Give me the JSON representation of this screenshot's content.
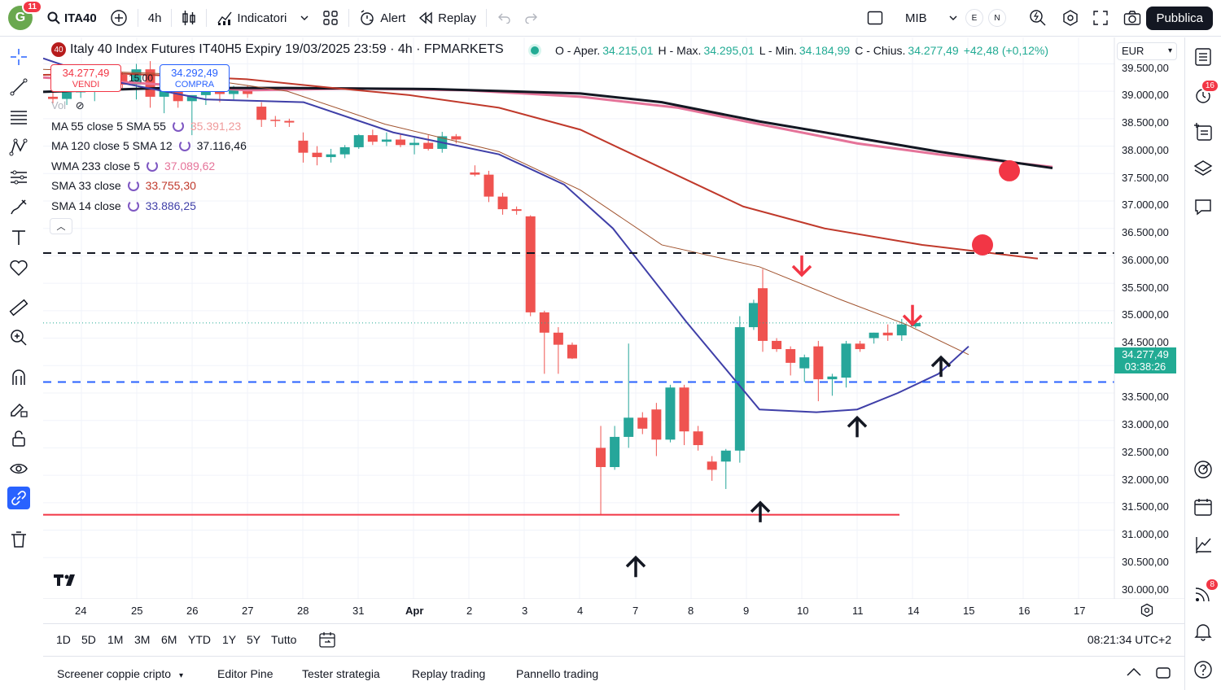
{
  "toolbar": {
    "avatar_letter": "G",
    "avatar_badge": "11",
    "symbol": "ITA40",
    "interval": "4h",
    "indicators": "Indicatori",
    "alert": "Alert",
    "replay": "Replay",
    "compare_symbol": "MIB",
    "pill_e": "E",
    "pill_n": "N",
    "publish": "Pubblica"
  },
  "legend": {
    "symbol_badge": "40",
    "title": "Italy 40 Index Futures IT40H5 Expiry 19/03/2025 23:59 · 4h · FPMARKETS",
    "open_label": "O - Aper.",
    "open": "34.215,01",
    "high_label": "H - Max.",
    "high": "34.295,01",
    "low_label": "L - Min.",
    "low": "34.184,99",
    "close_label": "C - Chius.",
    "close": "34.277,49",
    "change": "+42,48 (+0,12%)"
  },
  "trade": {
    "sell_price": "34.277,49",
    "sell_label": "VENDI",
    "spread": "15,00",
    "buy_price": "34.292,49",
    "buy_label": "COMPRA"
  },
  "indicators": [
    {
      "name": "Vol",
      "value": ""
    },
    {
      "name": "MA 55 close 5 SMA 55",
      "value": "35.391,23",
      "color": "#ef9a9a"
    },
    {
      "name": "MA 120 close 5 SMA 12",
      "value": "37.116,46",
      "color": "#131722"
    },
    {
      "name": "WMA 233 close 5",
      "value": "37.089,62",
      "color": "#e57399"
    },
    {
      "name": "SMA 33 close",
      "value": "33.755,30",
      "color": "#c0392b"
    },
    {
      "name": "SMA 14 close",
      "value": "33.886,25",
      "color": "#3f3fa8"
    }
  ],
  "price_axis": {
    "currency": "EUR",
    "labels": [
      "39.500,00",
      "39.000,00",
      "38.500,00",
      "38.000,00",
      "37.500,00",
      "37.000,00",
      "36.500,00",
      "36.000,00",
      "35.500,00",
      "35.000,00",
      "34.500,00",
      "33.500,00",
      "33.000,00",
      "32.500,00",
      "32.000,00",
      "31.500,00",
      "31.000,00",
      "30.500,00",
      "30.000,00"
    ],
    "current_price": "34.277,49",
    "countdown": "03:38:26"
  },
  "time_axis": [
    "24",
    "25",
    "26",
    "27",
    "28",
    "31",
    "Apr",
    "2",
    "3",
    "4",
    "7",
    "8",
    "9",
    "10",
    "11",
    "14",
    "15",
    "16",
    "17"
  ],
  "timeframes": [
    "1D",
    "5D",
    "1M",
    "3M",
    "6M",
    "YTD",
    "1Y",
    "5Y",
    "Tutto"
  ],
  "clock": "08:21:34 UTC+2",
  "panels": [
    "Screener coppie cripto",
    "Editor Pine",
    "Tester strategia",
    "Replay trading",
    "Pannello trading"
  ],
  "right_badges": {
    "alerts": "16",
    "notifications": "8"
  },
  "chart_data": {
    "type": "candlestick",
    "interval": "4h",
    "ylim": [
      29900,
      39600
    ],
    "colors": {
      "up": "#26a69a",
      "down": "#ef5350"
    },
    "candles": [
      {
        "o": 38400,
        "h": 38560,
        "l": 38280,
        "c": 38360
      },
      {
        "o": 38360,
        "h": 38600,
        "l": 38250,
        "c": 38480
      },
      {
        "o": 38480,
        "h": 38700,
        "l": 38380,
        "c": 38520
      },
      {
        "o": 38520,
        "h": 38900,
        "l": 38320,
        "c": 38750
      },
      {
        "o": 38750,
        "h": 38960,
        "l": 38600,
        "c": 38800
      },
      {
        "o": 38800,
        "h": 38850,
        "l": 38560,
        "c": 38620
      },
      {
        "o": 38620,
        "h": 39000,
        "l": 38350,
        "c": 38900
      },
      {
        "o": 38900,
        "h": 39050,
        "l": 38200,
        "c": 38400
      },
      {
        "o": 38400,
        "h": 38700,
        "l": 38100,
        "c": 38550
      },
      {
        "o": 38550,
        "h": 38650,
        "l": 38200,
        "c": 38320
      },
      {
        "o": 38320,
        "h": 38400,
        "l": 37700,
        "c": 38430
      },
      {
        "o": 38430,
        "h": 38550,
        "l": 38250,
        "c": 38500
      },
      {
        "o": 38500,
        "h": 38580,
        "l": 38300,
        "c": 38450
      },
      {
        "o": 38450,
        "h": 38600,
        "l": 38350,
        "c": 38520
      },
      {
        "o": 38520,
        "h": 38600,
        "l": 38380,
        "c": 38450
      },
      {
        "o": 38220,
        "h": 38300,
        "l": 37850,
        "c": 37980
      },
      {
        "o": 37980,
        "h": 38050,
        "l": 37850,
        "c": 37960
      },
      {
        "o": 37960,
        "h": 38000,
        "l": 37850,
        "c": 37930
      },
      {
        "o": 37600,
        "h": 37750,
        "l": 37200,
        "c": 37380
      },
      {
        "o": 37380,
        "h": 37500,
        "l": 37150,
        "c": 37300
      },
      {
        "o": 37300,
        "h": 37450,
        "l": 37200,
        "c": 37350
      },
      {
        "o": 37350,
        "h": 37520,
        "l": 37280,
        "c": 37480
      },
      {
        "o": 37480,
        "h": 37720,
        "l": 37450,
        "c": 37700
      },
      {
        "o": 37700,
        "h": 37800,
        "l": 37520,
        "c": 37580
      },
      {
        "o": 37580,
        "h": 37750,
        "l": 37500,
        "c": 37620
      },
      {
        "o": 37620,
        "h": 37720,
        "l": 37480,
        "c": 37520
      },
      {
        "o": 37520,
        "h": 37650,
        "l": 37350,
        "c": 37560
      },
      {
        "o": 37560,
        "h": 37700,
        "l": 37420,
        "c": 37450
      },
      {
        "o": 37450,
        "h": 37760,
        "l": 37380,
        "c": 37680
      },
      {
        "o": 37680,
        "h": 37720,
        "l": 37550,
        "c": 37620
      },
      {
        "o": 37020,
        "h": 37150,
        "l": 36950,
        "c": 36980
      },
      {
        "o": 36980,
        "h": 37050,
        "l": 36480,
        "c": 36580
      },
      {
        "o": 36580,
        "h": 36650,
        "l": 36250,
        "c": 36350
      },
      {
        "o": 36350,
        "h": 36400,
        "l": 36250,
        "c": 36320
      },
      {
        "o": 36220,
        "h": 36240,
        "l": 34400,
        "c": 34470
      },
      {
        "o": 34470,
        "h": 34500,
        "l": 33350,
        "c": 34100
      },
      {
        "o": 34100,
        "h": 34200,
        "l": 33350,
        "c": 33880
      },
      {
        "o": 33880,
        "h": 33920,
        "l": 33620,
        "c": 33630
      },
      {
        "o": 32000,
        "h": 32400,
        "l": 30780,
        "c": 31650
      },
      {
        "o": 31650,
        "h": 32400,
        "l": 31600,
        "c": 32200
      },
      {
        "o": 32200,
        "h": 33900,
        "l": 32000,
        "c": 32550
      },
      {
        "o": 32550,
        "h": 32650,
        "l": 32250,
        "c": 32350
      },
      {
        "o": 32700,
        "h": 32820,
        "l": 31850,
        "c": 32150
      },
      {
        "o": 32150,
        "h": 33150,
        "l": 32100,
        "c": 33100
      },
      {
        "o": 33100,
        "h": 33150,
        "l": 32050,
        "c": 32300
      },
      {
        "o": 32300,
        "h": 32400,
        "l": 31950,
        "c": 32050
      },
      {
        "o": 31750,
        "h": 31850,
        "l": 31400,
        "c": 31600
      },
      {
        "o": 31750,
        "h": 31980,
        "l": 31250,
        "c": 31950
      },
      {
        "o": 31950,
        "h": 34400,
        "l": 31730,
        "c": 34200
      },
      {
        "o": 34200,
        "h": 34700,
        "l": 34150,
        "c": 34640
      },
      {
        "o": 34910,
        "h": 35260,
        "l": 33750,
        "c": 33950
      },
      {
        "o": 33950,
        "h": 34000,
        "l": 33750,
        "c": 33800
      },
      {
        "o": 33800,
        "h": 33850,
        "l": 33320,
        "c": 33550
      },
      {
        "o": 33450,
        "h": 33700,
        "l": 33200,
        "c": 33650
      },
      {
        "o": 33850,
        "h": 33950,
        "l": 32850,
        "c": 33250
      },
      {
        "o": 33250,
        "h": 33350,
        "l": 32950,
        "c": 33300
      },
      {
        "o": 33280,
        "h": 33950,
        "l": 33100,
        "c": 33900
      },
      {
        "o": 33900,
        "h": 33950,
        "l": 33750,
        "c": 33800
      },
      {
        "o": 34000,
        "h": 34100,
        "l": 33900,
        "c": 34100
      },
      {
        "o": 34100,
        "h": 34250,
        "l": 33950,
        "c": 34050
      },
      {
        "o": 34050,
        "h": 34350,
        "l": 33950,
        "c": 34250
      },
      {
        "o": 34215,
        "h": 34295,
        "l": 34185,
        "c": 34277
      }
    ],
    "horizontal_lines": [
      {
        "price": 35550,
        "color": "#131722",
        "style": "dashed"
      },
      {
        "price": 33200,
        "color": "#2962ff",
        "style": "dashed"
      },
      {
        "price": 30780,
        "color": "#f23645",
        "style": "solid"
      }
    ]
  }
}
